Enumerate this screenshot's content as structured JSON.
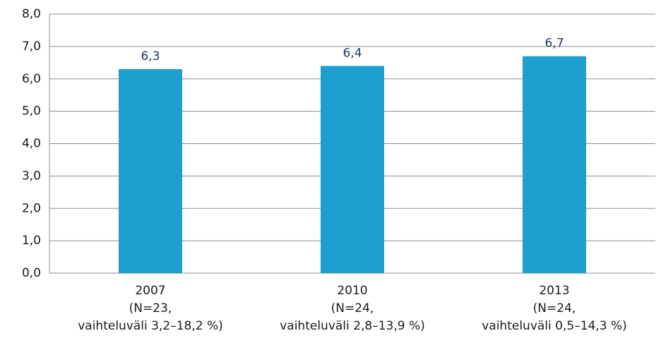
{
  "chart_data": {
    "type": "bar",
    "categories": [
      [
        "2007",
        "(N=23,",
        "vaihteluväli 3,2–18,2 %)"
      ],
      [
        "2010",
        "(N=24,",
        "vaihteluväli 2,8–13,9 %)"
      ],
      [
        "2013",
        "(N=24,",
        "vaihteluväli 0,5–14,3 %)"
      ]
    ],
    "values": [
      6.3,
      6.4,
      6.7
    ],
    "value_labels": [
      "6,3",
      "6,4",
      "6,7"
    ],
    "color": "#1f9fd0",
    "ylim": [
      0,
      8
    ],
    "yticks": [
      {
        "value": 0,
        "label": "0,0"
      },
      {
        "value": 1,
        "label": "1,0"
      },
      {
        "value": 2,
        "label": "2,0"
      },
      {
        "value": 3,
        "label": "3,0"
      },
      {
        "value": 4,
        "label": "4,0"
      },
      {
        "value": 5,
        "label": "5,0"
      },
      {
        "value": 6,
        "label": "6,0"
      },
      {
        "value": 7,
        "label": "7,0"
      },
      {
        "value": 8,
        "label": "8,0"
      }
    ],
    "grid": true
  }
}
